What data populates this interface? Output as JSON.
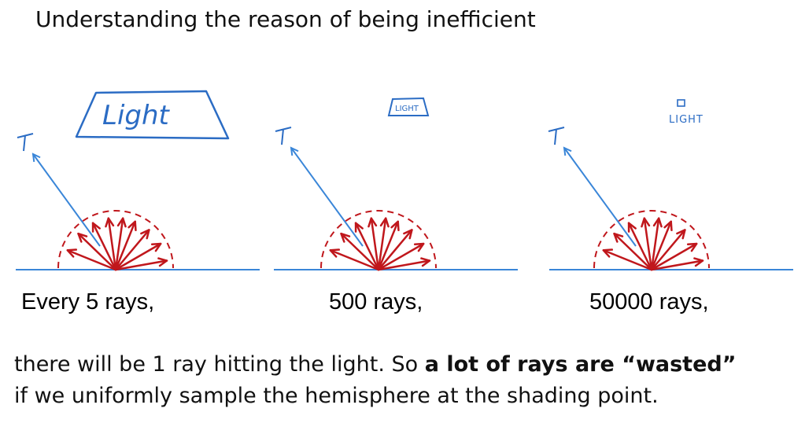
{
  "title": "Understanding the reason of being inefficient",
  "panels": [
    {
      "light_label": "Light",
      "caption": "Every 5 rays,"
    },
    {
      "light_label": "LIGHT",
      "caption": "500 rays,"
    },
    {
      "light_label": "LIGHT",
      "caption": "50000 rays,"
    }
  ],
  "body": {
    "line1_plain": "there will be 1 ray hitting the light. So ",
    "line1_bold": "a lot of rays are “wasted”",
    "line2": "if we uniformly sample the hemisphere at the shading point."
  },
  "colors": {
    "ray_red": "#c0171c",
    "line_blue": "#3a86d8",
    "text": "#111111"
  }
}
